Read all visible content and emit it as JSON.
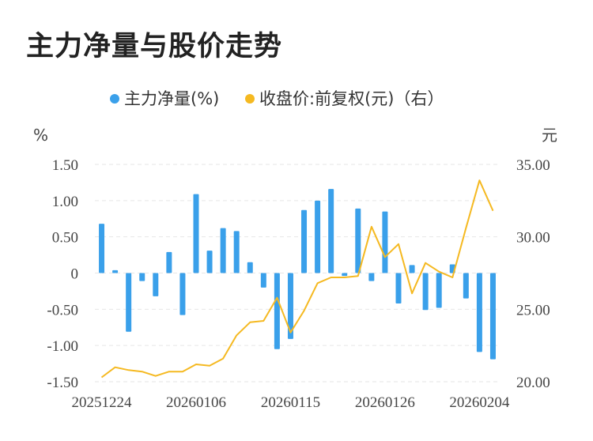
{
  "title": "主力净量与股价走势",
  "legend": {
    "bar_label": "主力净量(%)",
    "line_label": "收盘价:前复权(元)（右）"
  },
  "colors": {
    "bar": "#3aa0ea",
    "line": "#f5b921",
    "grid": "#e6e6e6"
  },
  "chart_data": {
    "type": "bar+line",
    "y_left_unit": "%",
    "y_right_unit": "元",
    "y_left_ticks": [
      "1.50",
      "1.00",
      "0.50",
      "0",
      "-0.50",
      "-1.00",
      "-1.50"
    ],
    "y_right_ticks": [
      "35.00",
      "30.00",
      "25.00",
      "20.00"
    ],
    "x_tick_labels": [
      "20251224",
      "20260106",
      "20260115",
      "20260126",
      "20260204"
    ],
    "x_tick_indices": [
      0,
      7,
      14,
      21,
      28
    ],
    "ylim_left": [
      -1.5,
      1.5
    ],
    "ylim_right": [
      20,
      35
    ],
    "grid": true,
    "legend_position": "top",
    "series": [
      {
        "name": "主力净量(%)",
        "type": "bar",
        "axis": "left",
        "values": [
          0.68,
          0.04,
          -0.81,
          -0.11,
          -0.32,
          0.29,
          -0.58,
          1.09,
          0.31,
          0.62,
          0.58,
          0.15,
          -0.2,
          -1.05,
          -0.91,
          0.87,
          1.0,
          1.16,
          -0.04,
          0.89,
          -0.11,
          0.85,
          -0.42,
          0.11,
          -0.51,
          -0.48,
          0.12,
          -0.35,
          -1.09,
          -1.19
        ]
      },
      {
        "name": "收盘价:前复权(元)（右）",
        "type": "line",
        "axis": "right",
        "values": [
          20.3,
          21.0,
          20.8,
          20.7,
          20.4,
          20.7,
          20.7,
          21.2,
          21.1,
          21.6,
          23.2,
          24.1,
          24.2,
          25.8,
          23.4,
          24.9,
          26.8,
          27.2,
          27.2,
          27.3,
          30.7,
          28.6,
          29.5,
          26.1,
          28.2,
          27.6,
          27.2,
          30.6,
          33.9,
          31.8
        ]
      }
    ]
  }
}
